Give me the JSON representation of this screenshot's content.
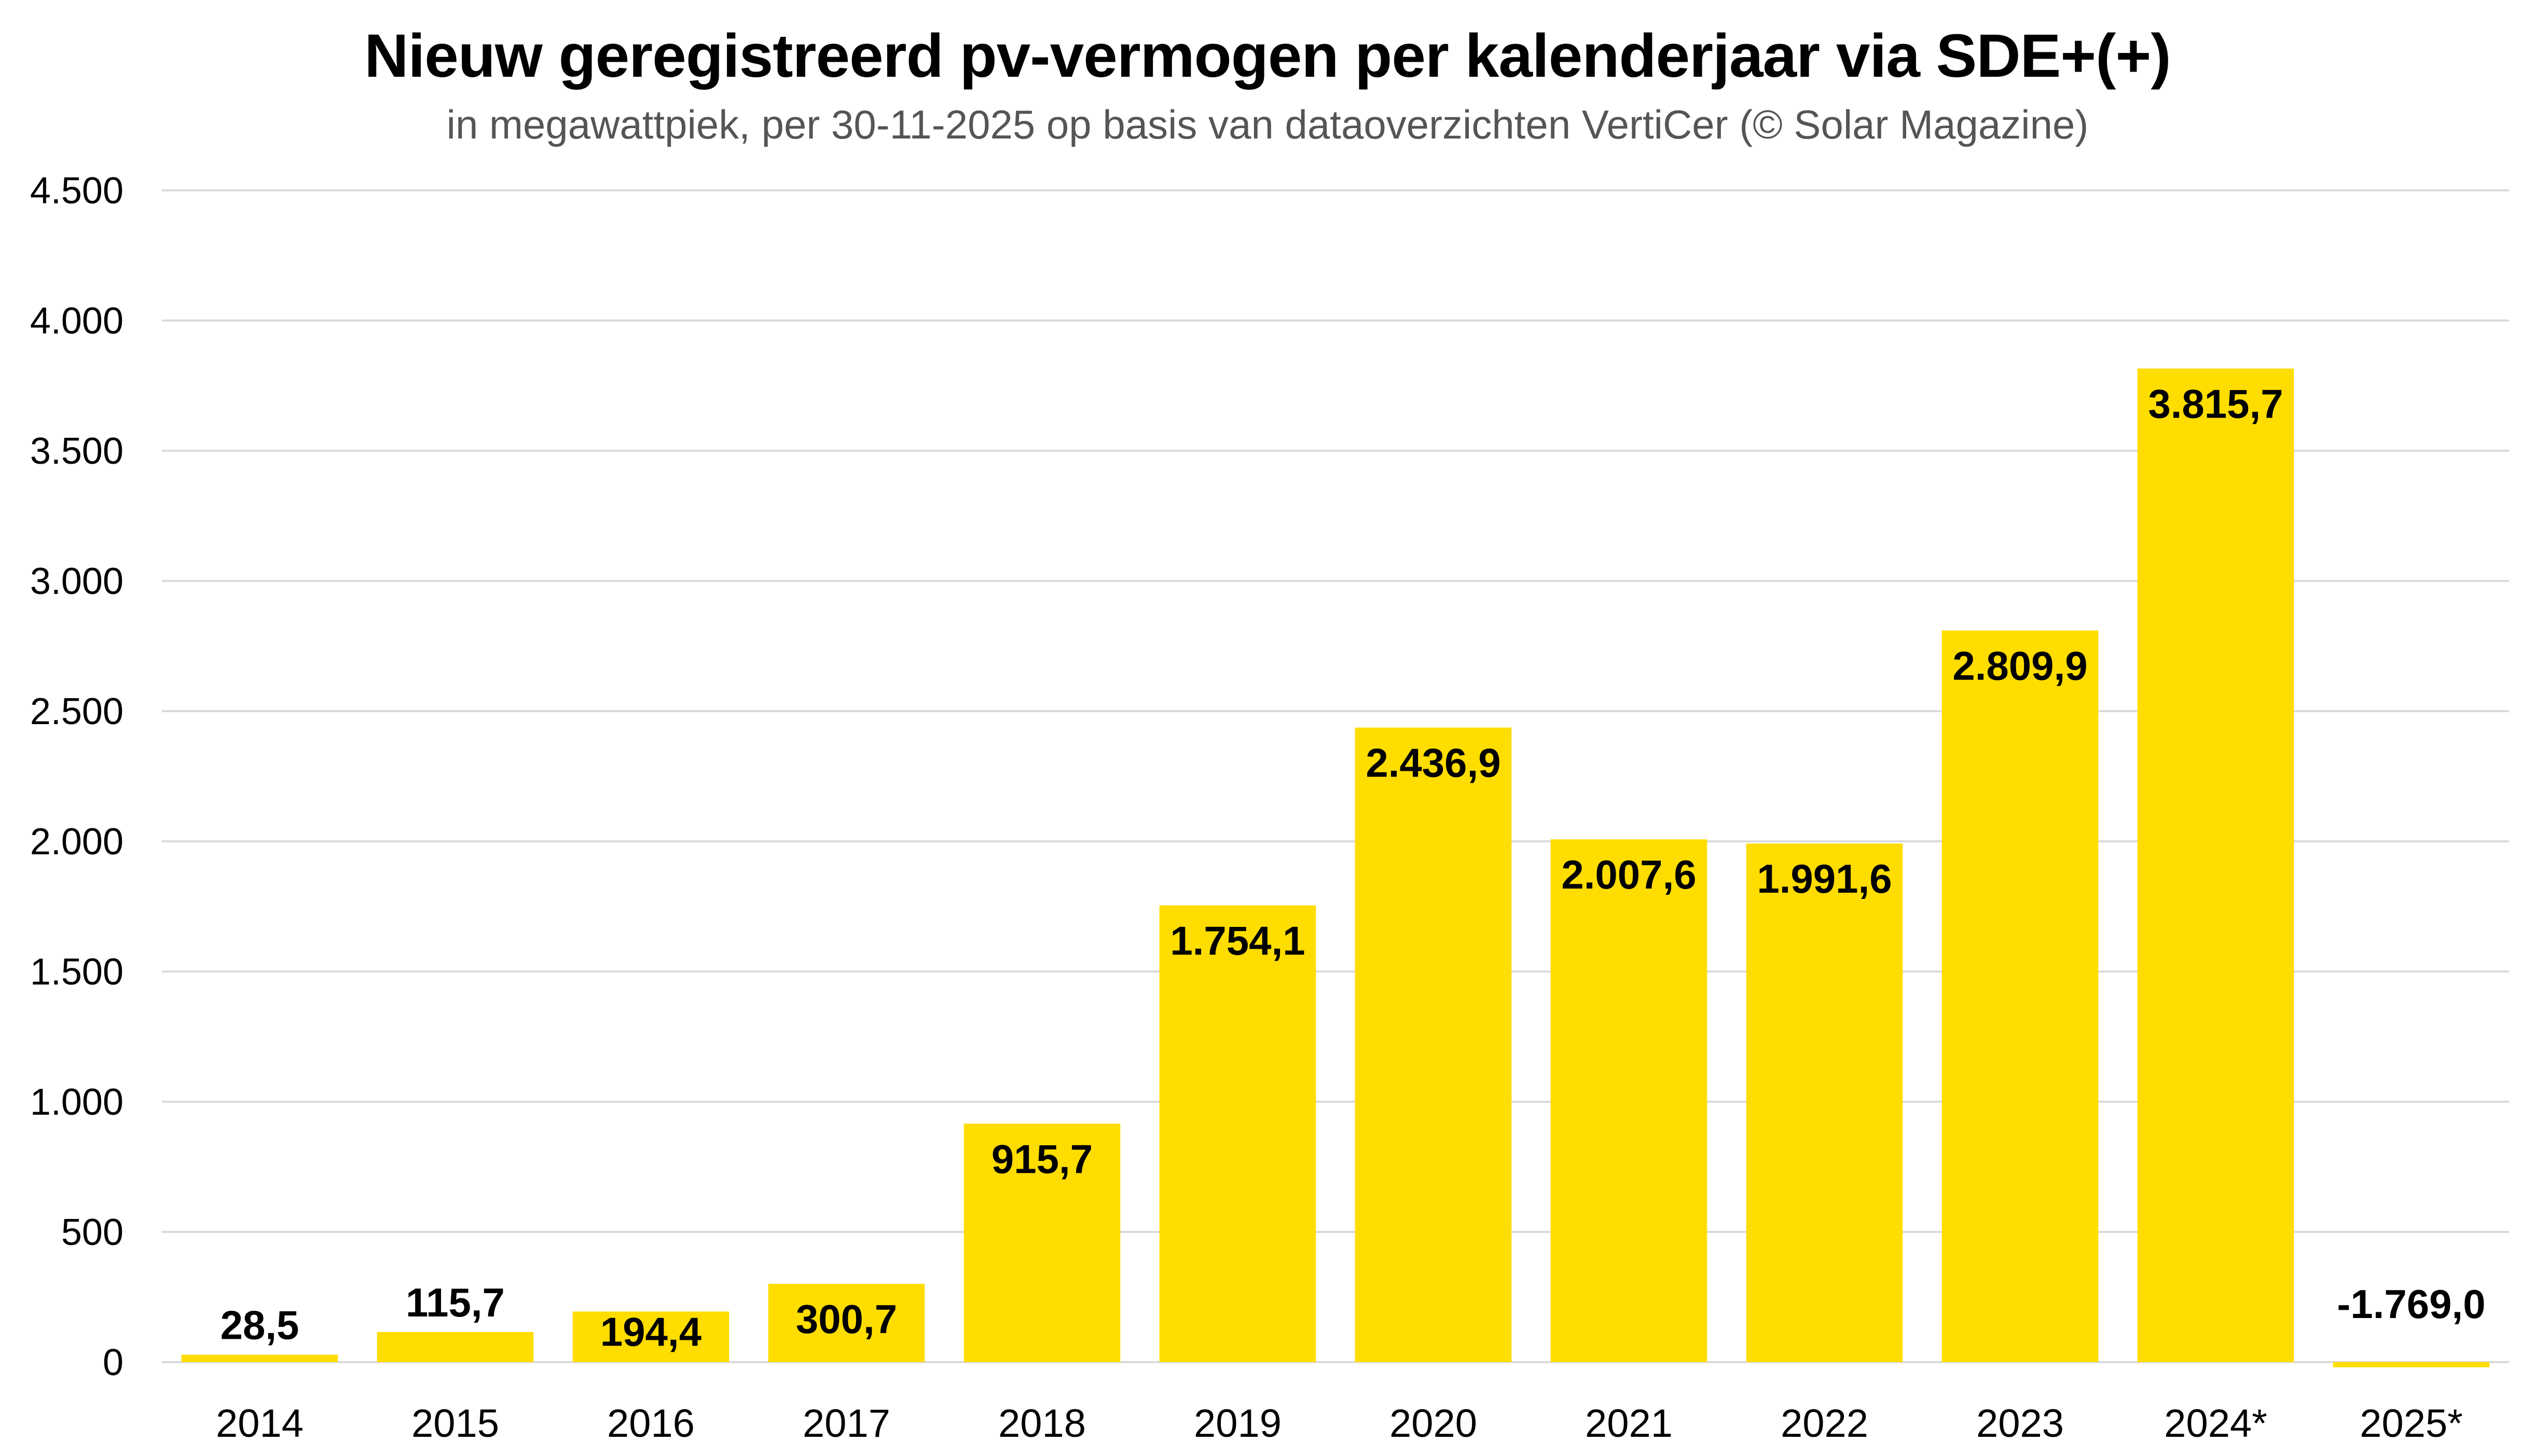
{
  "chart_data": {
    "type": "bar",
    "title": "Nieuw geregistreerd pv-vermogen per kalenderjaar via SDE+(+)",
    "subtitle": "in megawattpiek, per 30-11-2025 op basis van dataoverzichten VertiCer (© Solar Magazine)",
    "xlabel": "",
    "ylabel": "",
    "categories": [
      "2014",
      "2015",
      "2016",
      "2017",
      "2018",
      "2019",
      "2020",
      "2021",
      "2022",
      "2023",
      "2024*",
      "2025*"
    ],
    "values": [
      28.5,
      115.7,
      194.4,
      300.7,
      915.7,
      1754.1,
      2436.9,
      2007.6,
      1991.6,
      2809.9,
      3815.7,
      -1769.0
    ],
    "data_labels": [
      "28,5",
      "115,7",
      "194,4",
      "300,7",
      "915,7",
      "1.754,1",
      "2.436,9",
      "2.007,6",
      "1.991,6",
      "2.809,9",
      "3.815,7",
      "-1.769,0"
    ],
    "ylim": [
      0,
      4500
    ],
    "yticks": [
      0,
      500,
      1000,
      1500,
      2000,
      2500,
      3000,
      3500,
      4000,
      4500
    ],
    "ytick_labels": [
      "0",
      "500",
      "1.000",
      "1.500",
      "2.000",
      "2.500",
      "3.000",
      "3.500",
      "4.000",
      "4.500"
    ],
    "grid": true,
    "legend": "none",
    "colors": {
      "bar": "#FFDD00",
      "grid": "#DADADA",
      "text": "#000000",
      "subtitle": "#555555"
    }
  }
}
